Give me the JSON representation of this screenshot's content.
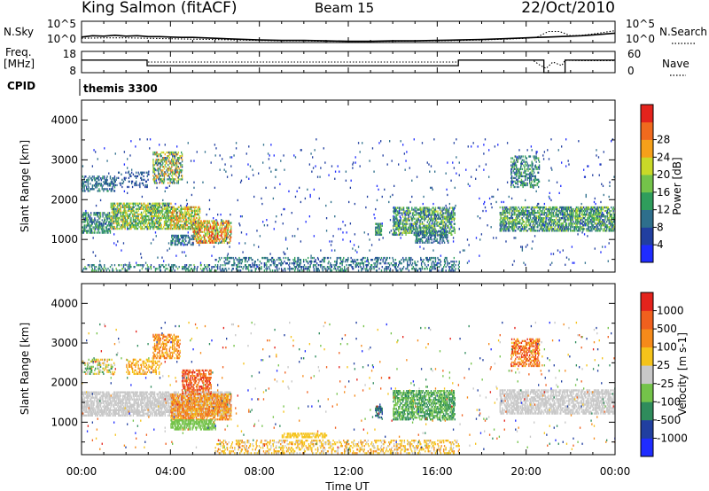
{
  "header": {
    "station": "King Salmon (fitACF)",
    "beam": "Beam 15",
    "date": "22/Oct/2010"
  },
  "chart_data": [
    {
      "type": "line",
      "panel": "noise",
      "left_label": "N.Sky",
      "right_label": "N.Search",
      "left_ticks": [
        "10^5",
        "10^0"
      ],
      "right_ticks": [
        "10^5",
        "10^0"
      ],
      "x_ticks": [
        0,
        4,
        8,
        12,
        16,
        20,
        24
      ],
      "series": [
        {
          "style": "solid",
          "x": [
            0,
            0.5,
            1,
            1.5,
            2,
            2.5,
            3,
            3.5,
            4,
            4.5,
            5,
            5.5,
            6,
            7,
            8,
            9,
            10,
            11,
            12,
            13,
            14,
            15,
            16,
            17,
            18,
            19,
            20,
            20.5,
            21,
            21.5,
            22,
            22.5,
            23,
            23.5,
            24
          ],
          "y": [
            1.3,
            1.6,
            1.5,
            1.7,
            1.5,
            1.6,
            1.4,
            1.4,
            1.3,
            1.2,
            1.2,
            1.1,
            1.0,
            0.8,
            0.6,
            0.5,
            0.5,
            0.4,
            0.3,
            0.3,
            0.4,
            0.4,
            0.5,
            0.6,
            0.7,
            0.9,
            1.1,
            1.2,
            1.3,
            1.4,
            1.5,
            1.6,
            1.8,
            2.0,
            2.2
          ]
        },
        {
          "style": "dotted",
          "x": [
            0,
            1,
            2,
            3,
            4,
            5,
            6,
            7,
            8,
            9,
            10,
            11,
            12,
            13,
            14,
            15,
            16,
            17,
            18,
            19,
            20,
            20.5,
            21,
            21.5,
            22,
            22.5,
            23,
            23.5,
            24
          ],
          "y": [
            1.0,
            1.1,
            1.1,
            1.0,
            0.9,
            0.8,
            0.7,
            0.6,
            0.5,
            0.4,
            0.4,
            0.3,
            0.3,
            0.3,
            0.3,
            0.4,
            0.4,
            0.5,
            0.6,
            0.8,
            1.0,
            1.3,
            2.6,
            2.6,
            1.6,
            1.7,
            2.0,
            2.4,
            2.8
          ]
        }
      ]
    },
    {
      "type": "line",
      "panel": "frequency",
      "left_label_1": "Freq.",
      "left_label_2": "[MHz]",
      "right_label": "Nave",
      "left_ticks": [
        18,
        8
      ],
      "right_ticks": [
        60,
        0
      ],
      "series": [
        {
          "style": "solid",
          "x": [
            0,
            2.95,
            2.95,
            16.95,
            16.95,
            20.8,
            20.8,
            21.75,
            21.75,
            24
          ],
          "y": [
            13.9,
            13.9,
            11.3,
            11.3,
            13.9,
            13.9,
            8,
            8,
            13.9,
            13.9
          ]
        },
        {
          "style": "dotted",
          "x": [
            0,
            2.95,
            2.95,
            16.95,
            16.95,
            20.3,
            20.6,
            20.9,
            21.2,
            21.6,
            21.75,
            22.5,
            24
          ],
          "y": [
            35,
            35,
            30,
            30,
            35,
            35,
            22,
            12,
            30,
            20,
            35,
            34,
            34
          ]
        }
      ]
    },
    {
      "type": "table",
      "panel": "cpid",
      "label": "CPID",
      "value": "themis 3300"
    },
    {
      "type": "heatmap",
      "panel": "power",
      "ylabel": "Slant Range [km]",
      "y_ticks": [
        1000,
        2000,
        3000,
        4000
      ],
      "ylim": [
        180,
        4500
      ],
      "xlim": [
        0,
        24
      ],
      "x_ticks": [
        "00:00",
        "04:00",
        "08:00",
        "12:00",
        "16:00",
        "20:00",
        "00:00"
      ],
      "colorbar_title": "Power [dB]",
      "colorbar_ticks": [
        4,
        8,
        12,
        16,
        20,
        24,
        28
      ],
      "colorbar_colors": [
        "#1f2cff",
        "#213fa0",
        "#2e6f8c",
        "#2f9d5c",
        "#74c34a",
        "#c9d928",
        "#f5a01a",
        "#f06a1e",
        "#e4231c"
      ],
      "scatter_regions": [
        {
          "t0": 0.0,
          "t1": 1.3,
          "r0": 1150,
          "r1": 1650,
          "v0": 1,
          "v1": 4,
          "d": 0.55
        },
        {
          "t0": 1.3,
          "t1": 4.0,
          "r0": 1250,
          "r1": 1900,
          "v0": 2,
          "v1": 6,
          "d": 0.6
        },
        {
          "t0": 4.0,
          "t1": 5.3,
          "r0": 1250,
          "r1": 1800,
          "v0": 3,
          "v1": 7,
          "d": 0.55
        },
        {
          "t0": 5.0,
          "t1": 6.7,
          "r0": 900,
          "r1": 1450,
          "v0": 3,
          "v1": 8,
          "d": 0.55
        },
        {
          "t0": 4.0,
          "t1": 5.0,
          "r0": 850,
          "r1": 1100,
          "v0": 1,
          "v1": 3,
          "d": 0.5
        },
        {
          "t0": 3.2,
          "t1": 4.5,
          "r0": 2400,
          "r1": 3200,
          "v0": 1,
          "v1": 7,
          "d": 0.45
        },
        {
          "t0": 0.0,
          "t1": 1.5,
          "r0": 2200,
          "r1": 2600,
          "v0": 1,
          "v1": 3,
          "d": 0.35
        },
        {
          "t0": 1.5,
          "t1": 3.0,
          "r0": 2300,
          "r1": 2700,
          "v0": 1,
          "v1": 2,
          "d": 0.2
        },
        {
          "t0": 6.0,
          "t1": 17.0,
          "r0": 200,
          "r1": 550,
          "v0": 1,
          "v1": 3,
          "d": 0.28
        },
        {
          "t0": 0.0,
          "t1": 6.0,
          "r0": 200,
          "r1": 350,
          "v0": 1,
          "v1": 4,
          "d": 0.25
        },
        {
          "t0": 13.2,
          "t1": 13.5,
          "r0": 1100,
          "r1": 1400,
          "v0": 2,
          "v1": 4,
          "d": 0.6
        },
        {
          "t0": 14.0,
          "t1": 16.8,
          "r0": 1100,
          "r1": 1800,
          "v0": 1,
          "v1": 5,
          "d": 0.5
        },
        {
          "t0": 15.0,
          "t1": 16.5,
          "r0": 900,
          "r1": 1200,
          "v0": 1,
          "v1": 3,
          "d": 0.4
        },
        {
          "t0": 19.3,
          "t1": 20.6,
          "r0": 2300,
          "r1": 3100,
          "v0": 1,
          "v1": 4,
          "d": 0.4
        },
        {
          "t0": 18.8,
          "t1": 24.0,
          "r0": 1200,
          "r1": 1800,
          "v0": 1,
          "v1": 5,
          "d": 0.55
        },
        {
          "t0": 0.0,
          "t1": 24.0,
          "r0": 300,
          "r1": 3500,
          "v0": 0,
          "v1": 2,
          "d": 0.012
        }
      ]
    },
    {
      "type": "heatmap",
      "panel": "velocity",
      "ylabel": "Slant Range [km]",
      "y_ticks": [
        1000,
        2000,
        3000,
        4000
      ],
      "ylim": [
        180,
        4500
      ],
      "xlim": [
        0,
        24
      ],
      "x_ticks": [
        "00:00",
        "04:00",
        "08:00",
        "12:00",
        "16:00",
        "20:00",
        "00:00"
      ],
      "xlabel": "Time UT",
      "colorbar_title": "Velocity [m s-1]",
      "colorbar_ticks": [
        1000,
        500,
        100,
        25,
        -25,
        -100,
        -500,
        -1000
      ],
      "colorbar_colors": [
        "#1f2cff",
        "#213fa0",
        "#2f8c5c",
        "#74c34a",
        "#c8c8c8",
        "#f5c31a",
        "#f58a1a",
        "#f0601e",
        "#e4231c"
      ],
      "scatter_regions": [
        {
          "t0": 0.0,
          "t1": 6.7,
          "r0": 1150,
          "r1": 1750,
          "v0": 4,
          "v1": 4,
          "d": 0.6
        },
        {
          "t0": 4.0,
          "t1": 6.7,
          "r0": 1050,
          "r1": 1700,
          "v0": 5,
          "v1": 7,
          "d": 0.55
        },
        {
          "t0": 4.5,
          "t1": 5.8,
          "r0": 1700,
          "r1": 2300,
          "v0": 6,
          "v1": 8,
          "d": 0.5
        },
        {
          "t0": 3.2,
          "t1": 4.4,
          "r0": 2600,
          "r1": 3200,
          "v0": 5,
          "v1": 7,
          "d": 0.45
        },
        {
          "t0": 2.0,
          "t1": 3.5,
          "r0": 2200,
          "r1": 2600,
          "v0": 5,
          "v1": 6,
          "d": 0.3
        },
        {
          "t0": 0.0,
          "t1": 1.5,
          "r0": 2200,
          "r1": 2600,
          "v0": 2,
          "v1": 6,
          "d": 0.35
        },
        {
          "t0": 4.0,
          "t1": 6.0,
          "r0": 800,
          "r1": 1050,
          "v0": 3,
          "v1": 3,
          "d": 0.55
        },
        {
          "t0": 6.0,
          "t1": 17.0,
          "r0": 200,
          "r1": 550,
          "v0": 4,
          "v1": 6,
          "d": 0.28
        },
        {
          "t0": 9.0,
          "t1": 11.0,
          "r0": 600,
          "r1": 720,
          "v0": 5,
          "v1": 5,
          "d": 0.55
        },
        {
          "t0": 13.2,
          "t1": 13.5,
          "r0": 1100,
          "r1": 1400,
          "v0": 1,
          "v1": 2,
          "d": 0.6
        },
        {
          "t0": 14.0,
          "t1": 16.8,
          "r0": 1050,
          "r1": 1800,
          "v0": 2,
          "v1": 3,
          "d": 0.55
        },
        {
          "t0": 19.3,
          "t1": 20.6,
          "r0": 2400,
          "r1": 3100,
          "v0": 5,
          "v1": 8,
          "d": 0.45
        },
        {
          "t0": 18.8,
          "t1": 24.0,
          "r0": 1200,
          "r1": 1800,
          "v0": 4,
          "v1": 4,
          "d": 0.55
        },
        {
          "t0": 0.0,
          "t1": 24.0,
          "r0": 300,
          "r1": 3500,
          "v0": 0,
          "v1": 8,
          "d": 0.012
        }
      ]
    }
  ]
}
